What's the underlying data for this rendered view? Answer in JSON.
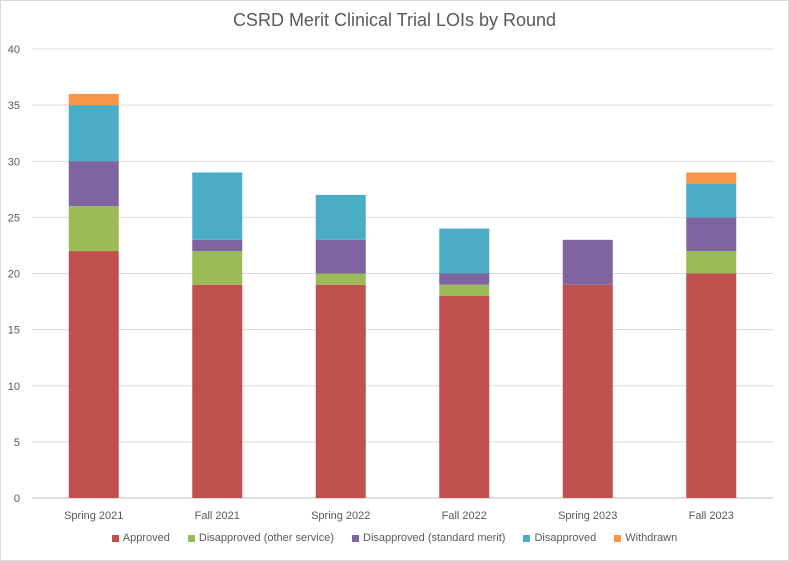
{
  "chart_data": {
    "type": "bar",
    "stacked": true,
    "title": "CSRD Merit Clinical Trial LOIs by Round",
    "xlabel": "",
    "ylabel": "",
    "ylim": [
      0,
      40
    ],
    "yticks": [
      0,
      5,
      10,
      15,
      20,
      25,
      30,
      35,
      40
    ],
    "grid": true,
    "legend_position": "bottom",
    "categories": [
      "Spring 2021",
      "Fall 2021",
      "Spring 2022",
      "Fall 2022",
      "Spring 2023",
      "Fall 2023"
    ],
    "series": [
      {
        "name": "Approved",
        "color": "#c0504d",
        "values": [
          22,
          19,
          19,
          18,
          19,
          20
        ]
      },
      {
        "name": "Disapproved (other service)",
        "color": "#9bbb59",
        "values": [
          4,
          3,
          1,
          1,
          0,
          2
        ]
      },
      {
        "name": "Disapproved (standard merit)",
        "color": "#8064a2",
        "values": [
          4,
          1,
          3,
          1,
          4,
          3
        ]
      },
      {
        "name": "Disapproved",
        "color": "#4bacc6",
        "values": [
          5,
          6,
          4,
          4,
          0,
          3
        ]
      },
      {
        "name": "Withdrawn",
        "color": "#f79646",
        "values": [
          1,
          0,
          0,
          0,
          0,
          1
        ]
      }
    ]
  }
}
